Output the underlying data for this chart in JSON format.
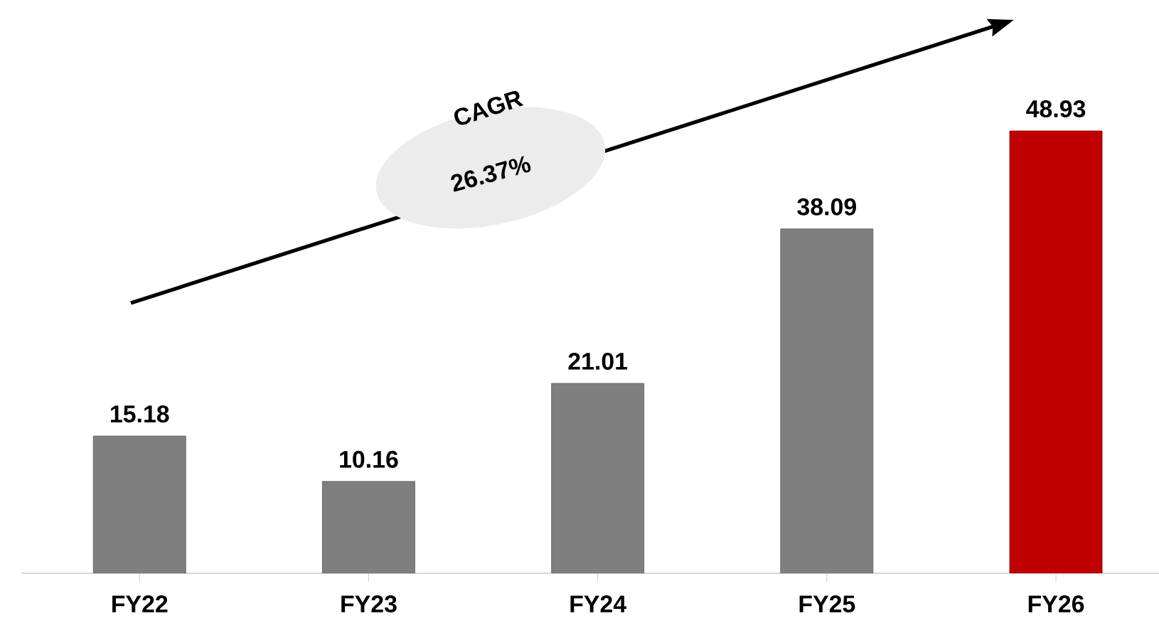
{
  "chart_data": {
    "type": "bar",
    "categories": [
      "FY22",
      "FY23",
      "FY24",
      "FY25",
      "FY26"
    ],
    "values": [
      15.18,
      10.16,
      21.01,
      38.09,
      48.93
    ],
    "colors": [
      "#7f7f7f",
      "#7f7f7f",
      "#7f7f7f",
      "#7f7f7f",
      "#c00000"
    ],
    "data_labels": true,
    "tick_labels": "x",
    "grid": false,
    "annotations": [
      "CAGR",
      "26.37%"
    ]
  }
}
